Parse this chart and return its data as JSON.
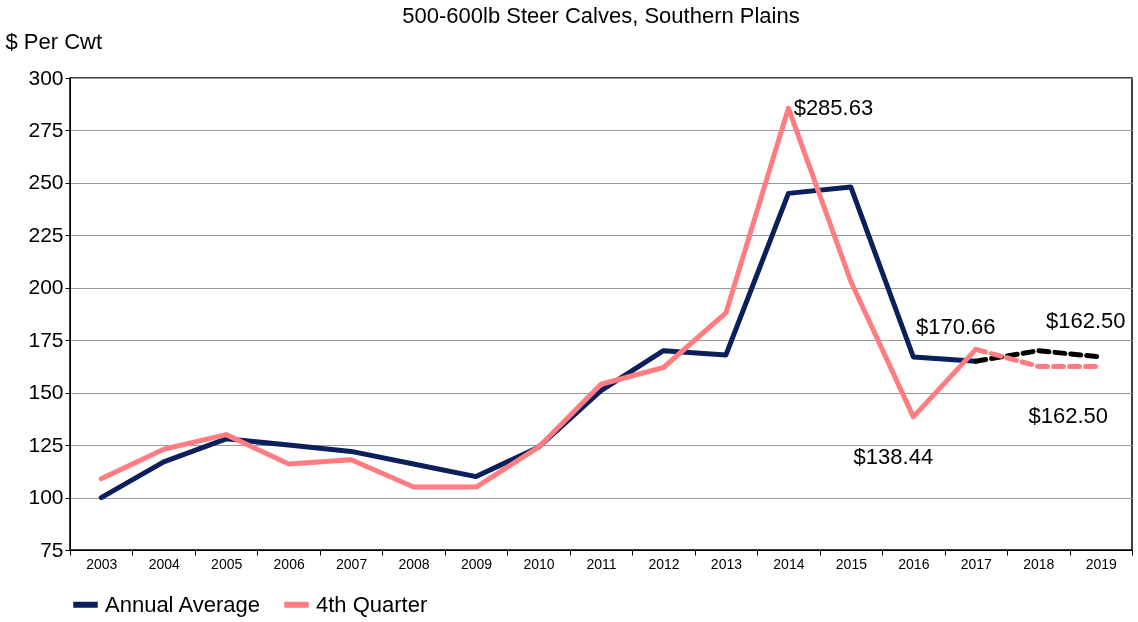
{
  "chart_data": {
    "type": "line",
    "title": "500-600lb Steer Calves, Southern Plains",
    "ylabel": "$ Per Cwt",
    "categories": [
      "2003",
      "2004",
      "2005",
      "2006",
      "2007",
      "2008",
      "2009",
      "2010",
      "2011",
      "2012",
      "2013",
      "2014",
      "2015",
      "2016",
      "2017",
      "2018",
      "2019"
    ],
    "series": [
      {
        "name": "Annual Average",
        "color": "#0a1f5c",
        "line_style": "solid",
        "values": [
          100,
          117,
          128,
          125,
          122,
          116,
          110,
          124,
          151,
          170,
          168,
          245,
          248,
          167,
          165,
          null,
          null
        ]
      },
      {
        "color": "#000000",
        "line_style": "dashed",
        "values": [
          null,
          null,
          null,
          null,
          null,
          null,
          null,
          null,
          null,
          null,
          null,
          null,
          null,
          null,
          165,
          170,
          167
        ]
      },
      {
        "name": "4th Quarter",
        "color": "#ff7c80",
        "line_style": "solid",
        "values": [
          109,
          123,
          130,
          116,
          118,
          105,
          105,
          124,
          154,
          162,
          188,
          285.63,
          203,
          138.44,
          170.66,
          null,
          null
        ]
      },
      {
        "color": "#ff7c80",
        "line_style": "dashed",
        "values": [
          null,
          null,
          null,
          null,
          null,
          null,
          null,
          null,
          null,
          null,
          null,
          null,
          null,
          null,
          170.66,
          162.5,
          162.5
        ]
      }
    ],
    "ylim": [
      75,
      300
    ],
    "yticks": [
      75,
      100,
      125,
      150,
      175,
      200,
      225,
      250,
      275,
      300
    ],
    "grid": "y",
    "legend": "bottom",
    "annotations": [
      {
        "text": "$285.63",
        "x": "2014",
        "y": 285.63
      },
      {
        "text": "$170.66",
        "x": "2017",
        "y": 170.66
      },
      {
        "text": "$138.44",
        "x": "2016",
        "y": 138.44
      },
      {
        "text": "$162.50",
        "x": "2019",
        "y": 162.5
      },
      {
        "text": "$162.50",
        "x": "2018",
        "y": 162.5
      }
    ]
  }
}
